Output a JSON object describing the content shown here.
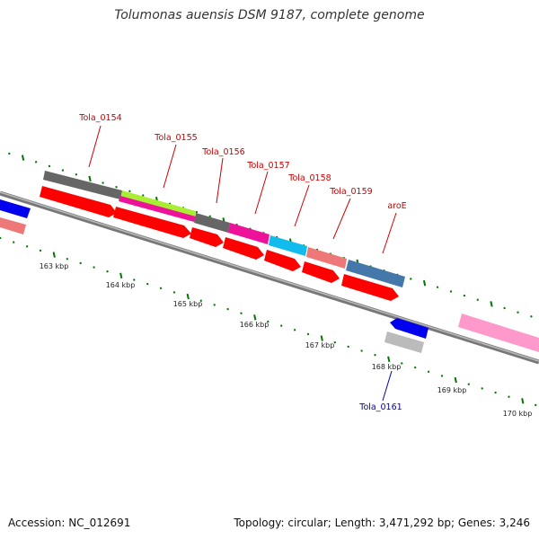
{
  "title": "Tolumonas auensis DSM 9187, complete genome",
  "footer": {
    "accession": "Accession: NC_012691",
    "summary": "Topology: circular; Length: 3,471,292 bp; Genes: 3,246"
  },
  "kbp_ticks": [
    "163 kbp",
    "164 kbp",
    "165 kbp",
    "166 kbp",
    "167 kbp",
    "168 kbp",
    "169 kbp",
    "170 kbp"
  ],
  "gene_labels": [
    {
      "text": "Tola_0154",
      "color": "#cc0000"
    },
    {
      "text": "Tola_0155",
      "color": "#cc0000"
    },
    {
      "text": "Tola_0156",
      "color": "#cc0000"
    },
    {
      "text": "Tola_0157",
      "color": "#cc0000"
    },
    {
      "text": "Tola_0158",
      "color": "#cc0000"
    },
    {
      "text": "Tola_0159",
      "color": "#cc0000"
    },
    {
      "text": "aroE",
      "color": "#cc0000"
    },
    {
      "text": "Tola_0161",
      "color": "#0000aa"
    }
  ],
  "colors": {
    "backbone": "#777777",
    "tick": "#007700",
    "cds_red": "#ff0000",
    "gray": "#666666",
    "lime": "#aaee33",
    "magenta": "#ee1199",
    "cyan": "#11bbee",
    "salmon": "#ee7777",
    "steelblue": "#4477aa",
    "blue": "#0000ee",
    "silver": "#bbbbbb",
    "pink": "#ff99cc"
  }
}
